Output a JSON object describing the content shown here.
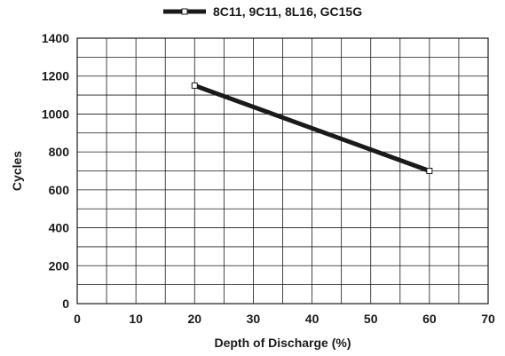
{
  "chart_data": {
    "type": "line",
    "x": [
      20,
      60
    ],
    "series": [
      {
        "name": "8C11, 9C11, 8L16, GC15G",
        "values": [
          1150,
          700
        ],
        "color": "#1a1a1a"
      }
    ],
    "xlabel": "Depth of Discharge (%)",
    "ylabel": "Cycles",
    "xlim": [
      0,
      70
    ],
    "ylim": [
      0,
      1400
    ],
    "xticks": [
      0,
      10,
      20,
      30,
      40,
      50,
      60,
      70
    ],
    "yticks": [
      0,
      200,
      400,
      600,
      800,
      1000,
      1200,
      1400
    ],
    "x_minor_step": 5,
    "y_minor_step": 100,
    "grid": true,
    "legend_position": "top-center"
  }
}
